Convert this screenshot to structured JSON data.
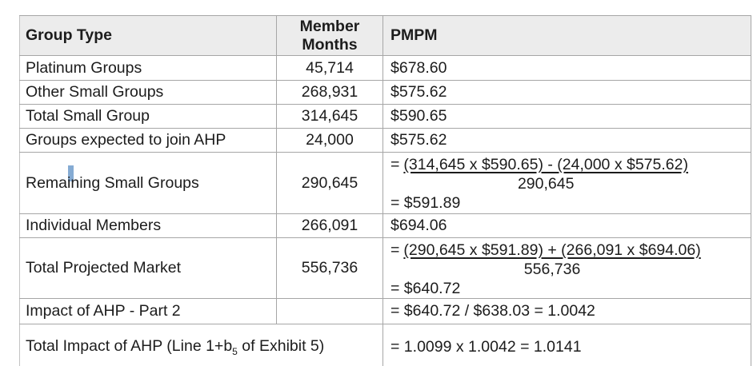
{
  "colors": {
    "header_bg": "#ececec",
    "outer_border": "#7e7e7e",
    "grid_line": "#a6a6a6",
    "divider": "#c3c3c3",
    "text": "#1c1c1c",
    "highlight_artifact": "#85abd3"
  },
  "table": {
    "headers": [
      {
        "label": "Group Type"
      },
      {
        "label": "Member Months"
      },
      {
        "label": "PMPM"
      }
    ],
    "rows": [
      {
        "group_type": "Platinum Groups",
        "member_months": "45,714",
        "pmpm": "$678.60"
      },
      {
        "group_type": "Other Small Groups",
        "member_months": "268,931",
        "pmpm": "$575.62"
      },
      {
        "group_type": "Total Small Group",
        "member_months": "314,645",
        "pmpm": "$590.65"
      },
      {
        "group_type": "Groups expected to join AHP",
        "member_months": "24,000",
        "pmpm": "$575.62"
      },
      {
        "group_type": "Remaining Small Groups",
        "member_months": "290,645",
        "pmpm_formula": {
          "prefix": "=",
          "numerator": "(314,645 x $590.65) - (24,000 x $575.62)",
          "denominator": "290,645",
          "result": "= $591.89"
        }
      },
      {
        "group_type": "Individual Members",
        "member_months": "266,091",
        "pmpm": "$694.06"
      },
      {
        "group_type": "Total Projected Market",
        "member_months": "556,736",
        "pmpm_formula": {
          "prefix": "=",
          "numerator": "(290,645 x $591.89) + (266,091 x $694.06)",
          "denominator": "556,736",
          "result": "= $640.72"
        }
      },
      {
        "group_type": "Impact of AHP - Part 2",
        "member_months": "",
        "pmpm": "= $640.72 / $638.03 = 1.0042"
      },
      {
        "group_type_parts": {
          "pre": "Total Impact of AHP (Line 1+b",
          "sub": "5",
          "post": " of Exhibit 5)"
        },
        "pmpm": "= 1.0099 x 1.0042 = 1.0141"
      }
    ]
  }
}
